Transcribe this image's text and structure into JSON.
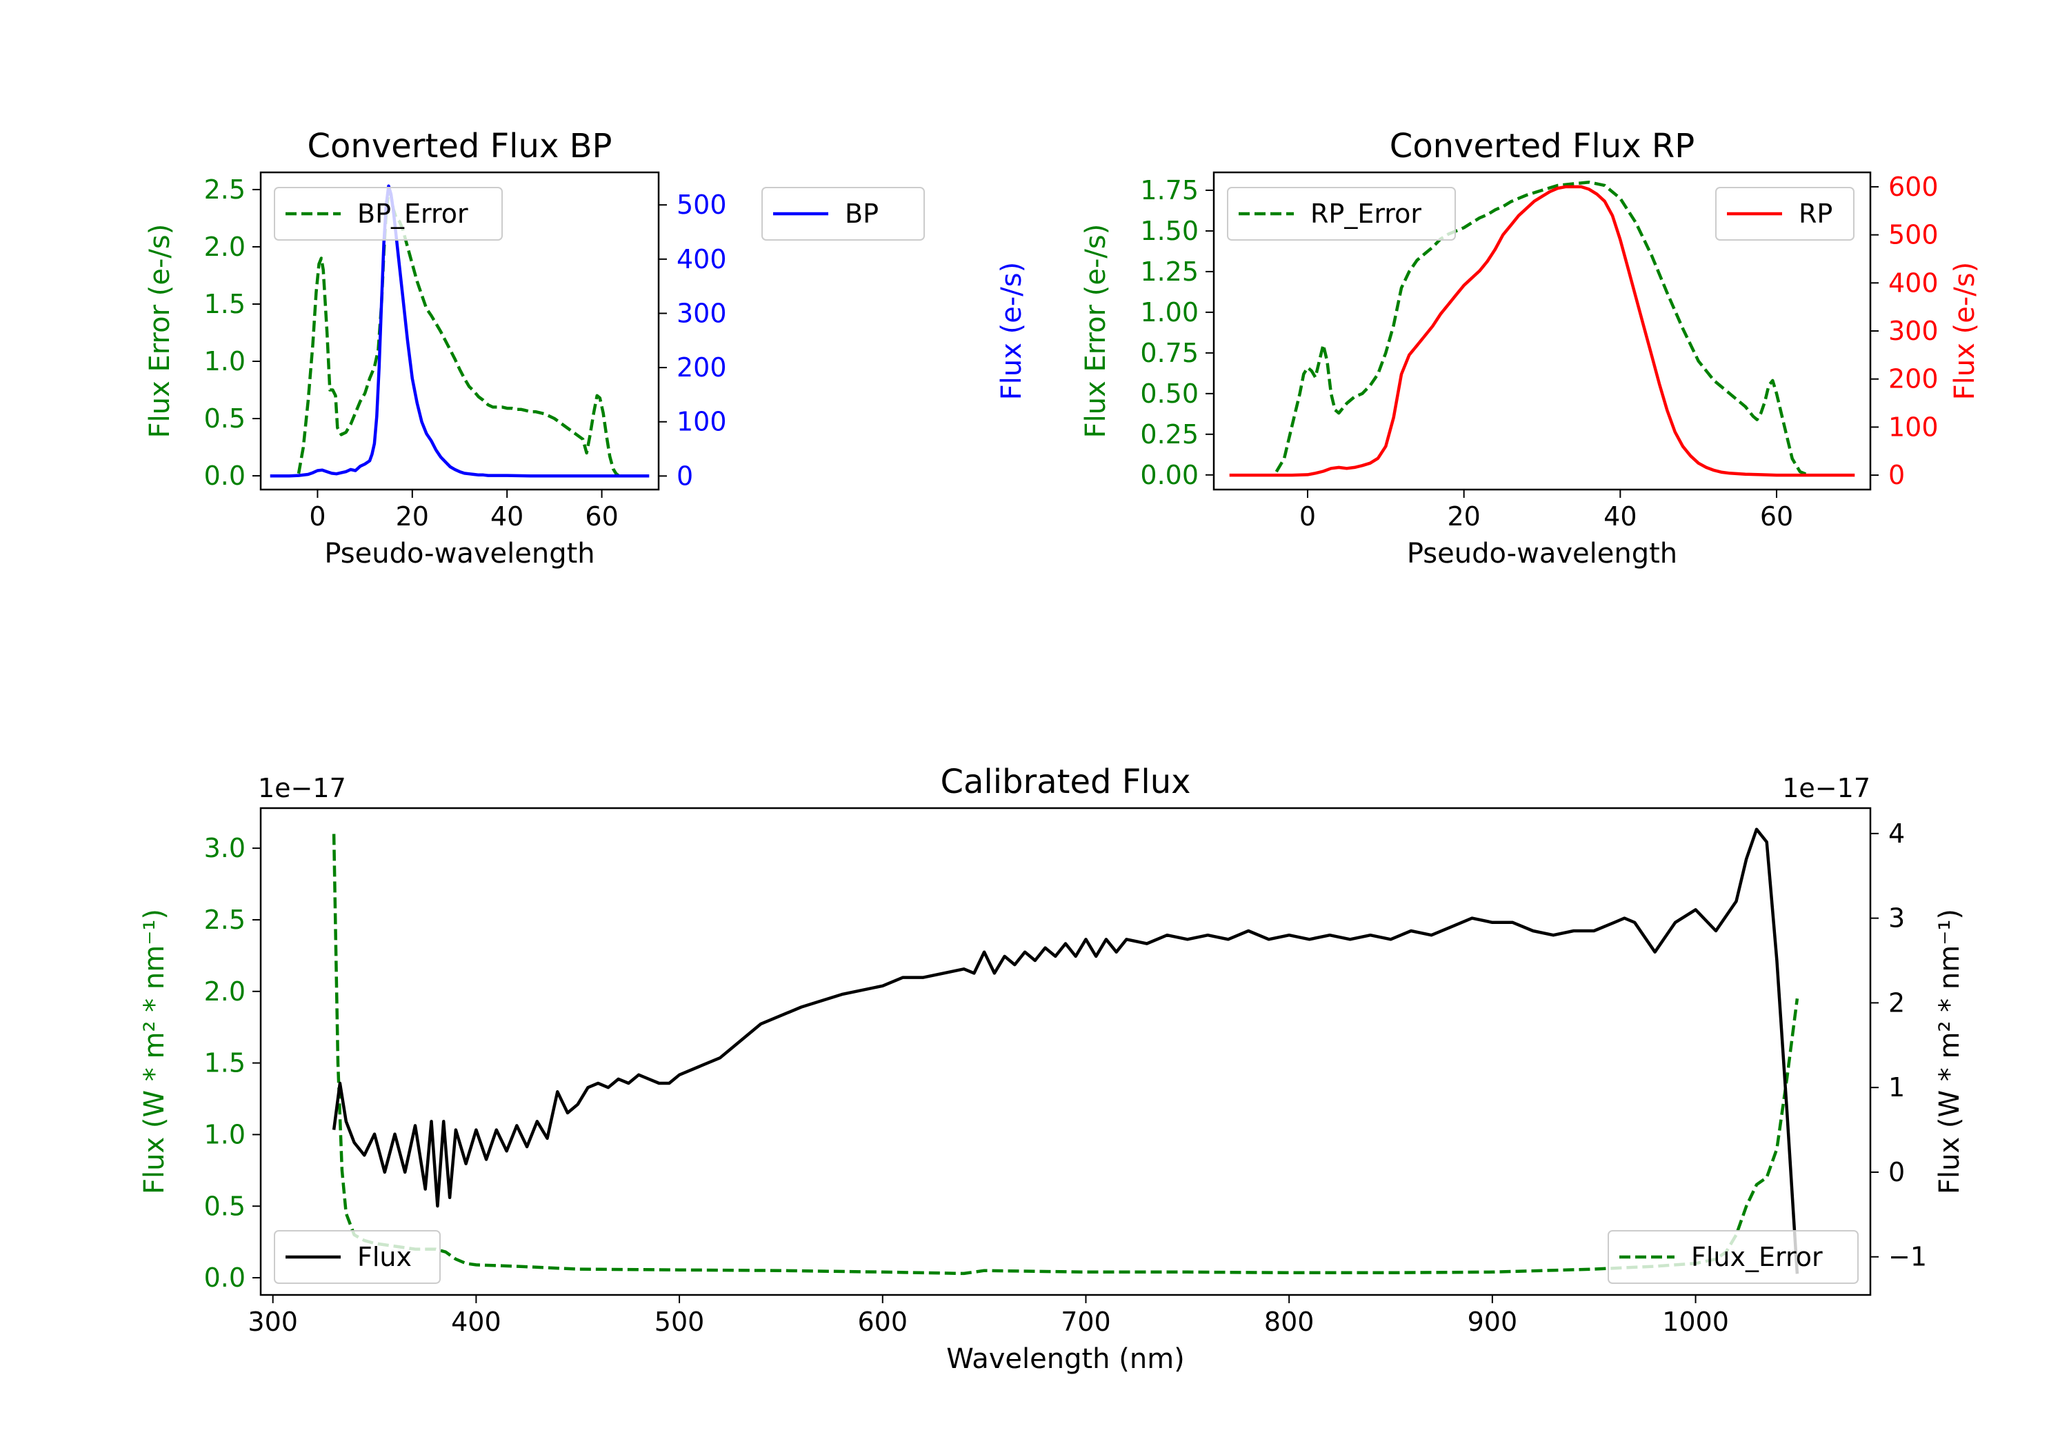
{
  "colors": {
    "green": "#008000",
    "blue": "#0000ff",
    "red": "#ff0000",
    "black": "#000000"
  },
  "chart_data": [
    {
      "id": "bp",
      "type": "line",
      "title": "Converted Flux BP",
      "xlabel": "Pseudo-wavelength",
      "ylabel_left": "Flux Error (e-/s)",
      "ylabel_right": "Flux (e-/s)",
      "xlim": [
        -12,
        72
      ],
      "ylim_left": [
        -0.12,
        2.65
      ],
      "ylim_right": [
        -25,
        560
      ],
      "xticks": [
        0,
        20,
        40,
        60
      ],
      "xtick_labels": [
        "0",
        "20",
        "40",
        "60"
      ],
      "yticks_left": [
        0.0,
        0.5,
        1.0,
        1.5,
        2.0,
        2.5
      ],
      "ytick_labels_left": [
        "0.0",
        "0.5",
        "1.0",
        "1.5",
        "2.0",
        "2.5"
      ],
      "yticks_right": [
        0,
        100,
        200,
        300,
        400,
        500
      ],
      "ytick_labels_right": [
        "0",
        "100",
        "200",
        "300",
        "400",
        "500"
      ],
      "left_color": "#008000",
      "right_color": "#0000ff",
      "legend_left": "BP_Error",
      "legend_right": "BP",
      "series": [
        {
          "name": "BP_Error",
          "axis": "left",
          "style": "dashed",
          "color": "#008000",
          "x": [
            -4,
            -3,
            -2,
            -1,
            -0.3,
            0.3,
            0.8,
            1.2,
            2,
            2.6,
            3.2,
            3.8,
            4.2,
            5,
            6,
            7,
            8,
            9,
            10,
            11,
            12,
            12.8,
            13.5,
            14,
            14.5,
            15,
            15.5,
            16,
            16.6,
            17.3,
            18,
            19,
            20,
            21,
            22,
            23,
            24,
            25,
            26,
            27,
            28,
            29,
            30,
            31,
            32,
            33,
            34,
            35,
            36,
            37,
            38,
            39,
            40,
            41,
            42,
            43,
            44,
            45,
            46,
            47,
            48,
            49,
            50,
            51,
            52,
            53,
            54,
            55,
            56,
            56.8,
            57.5,
            58.3,
            59,
            59.6,
            60.3,
            61,
            61.7,
            62.4,
            63,
            63.6
          ],
          "y": [
            0.02,
            0.25,
            0.65,
            1.15,
            1.6,
            1.85,
            1.9,
            1.8,
            1.25,
            0.75,
            0.75,
            0.7,
            0.42,
            0.36,
            0.38,
            0.45,
            0.55,
            0.65,
            0.72,
            0.85,
            0.95,
            1.1,
            1.5,
            1.95,
            2.3,
            2.48,
            2.45,
            2.33,
            2.25,
            2.22,
            2.15,
            2.0,
            1.85,
            1.7,
            1.58,
            1.46,
            1.4,
            1.33,
            1.26,
            1.18,
            1.1,
            1.02,
            0.93,
            0.85,
            0.78,
            0.74,
            0.69,
            0.66,
            0.62,
            0.6,
            0.6,
            0.6,
            0.59,
            0.59,
            0.58,
            0.58,
            0.57,
            0.56,
            0.56,
            0.55,
            0.54,
            0.52,
            0.5,
            0.47,
            0.44,
            0.41,
            0.38,
            0.35,
            0.32,
            0.2,
            0.35,
            0.55,
            0.7,
            0.68,
            0.55,
            0.35,
            0.17,
            0.06,
            0.02,
            0.0
          ]
        },
        {
          "name": "BP",
          "axis": "right",
          "style": "solid",
          "color": "#0000ff",
          "x": [
            -10,
            -8,
            -6,
            -4,
            -2,
            -1,
            0,
            1,
            2,
            3,
            4,
            5,
            6,
            7,
            8,
            9,
            10,
            11,
            11.5,
            12,
            12.5,
            13,
            13.5,
            14,
            14.5,
            15,
            15.5,
            16,
            16.5,
            17,
            18,
            19,
            20,
            21,
            22,
            23,
            24,
            25,
            26,
            27,
            28,
            29,
            30,
            31,
            32,
            33,
            34,
            35,
            36,
            38,
            40,
            45,
            50,
            55,
            60,
            65,
            70
          ],
          "y": [
            0,
            0,
            0,
            1,
            3,
            6,
            10,
            11,
            8,
            5,
            4,
            6,
            8,
            12,
            10,
            18,
            22,
            28,
            40,
            60,
            110,
            200,
            320,
            430,
            500,
            535,
            520,
            490,
            450,
            410,
            330,
            250,
            180,
            135,
            100,
            78,
            65,
            48,
            35,
            26,
            17,
            12,
            8,
            5,
            4,
            3,
            2,
            2,
            1,
            1,
            1,
            0,
            0,
            0,
            0,
            0,
            0
          ]
        }
      ]
    },
    {
      "id": "rp",
      "type": "line",
      "title": "Converted Flux RP",
      "xlabel": "Pseudo-wavelength",
      "ylabel_left": "Flux Error (e-/s)",
      "ylabel_right": "Flux (e-/s)",
      "xlim": [
        -12,
        72
      ],
      "ylim_left": [
        -0.09,
        1.86
      ],
      "ylim_right": [
        -30,
        630
      ],
      "xticks": [
        0,
        20,
        40,
        60
      ],
      "xtick_labels": [
        "0",
        "20",
        "40",
        "60"
      ],
      "yticks_left": [
        0.0,
        0.25,
        0.5,
        0.75,
        1.0,
        1.25,
        1.5,
        1.75
      ],
      "ytick_labels_left": [
        "0.00",
        "0.25",
        "0.50",
        "0.75",
        "1.00",
        "1.25",
        "1.50",
        "1.75"
      ],
      "yticks_right": [
        0,
        100,
        200,
        300,
        400,
        500,
        600
      ],
      "ytick_labels_right": [
        "0",
        "100",
        "200",
        "300",
        "400",
        "500",
        "600"
      ],
      "left_color": "#008000",
      "right_color": "#ff0000",
      "legend_left": "RP_Error",
      "legend_right": "RP",
      "series": [
        {
          "name": "RP_Error",
          "axis": "left",
          "style": "dashed",
          "color": "#008000",
          "x": [
            -4,
            -3,
            -2,
            -1,
            -0.5,
            0,
            0.5,
            1,
            1.5,
            2,
            2.5,
            3,
            3.5,
            4,
            5,
            6,
            7,
            8,
            9,
            10,
            11,
            12,
            13,
            14,
            15,
            16,
            17,
            18,
            19,
            20,
            21,
            22,
            23,
            24,
            25,
            26,
            27,
            28,
            30,
            32,
            34,
            36,
            38,
            40,
            42,
            44,
            46,
            48,
            50,
            52,
            54,
            56,
            57,
            57.5,
            58,
            58.5,
            59,
            59.5,
            60,
            61,
            62,
            63,
            64
          ],
          "y": [
            0.02,
            0.1,
            0.3,
            0.5,
            0.62,
            0.66,
            0.64,
            0.6,
            0.7,
            0.8,
            0.7,
            0.5,
            0.4,
            0.38,
            0.44,
            0.48,
            0.5,
            0.55,
            0.62,
            0.75,
            0.92,
            1.15,
            1.25,
            1.32,
            1.36,
            1.4,
            1.45,
            1.48,
            1.5,
            1.52,
            1.55,
            1.58,
            1.6,
            1.63,
            1.65,
            1.68,
            1.7,
            1.72,
            1.75,
            1.78,
            1.79,
            1.8,
            1.78,
            1.7,
            1.55,
            1.35,
            1.12,
            0.9,
            0.7,
            0.58,
            0.5,
            0.42,
            0.36,
            0.34,
            0.38,
            0.45,
            0.55,
            0.58,
            0.5,
            0.3,
            0.1,
            0.02,
            0.0
          ]
        },
        {
          "name": "RP",
          "axis": "right",
          "style": "solid",
          "color": "#ff0000",
          "x": [
            -10,
            -6,
            -2,
            0,
            1,
            2,
            3,
            4,
            5,
            6,
            7,
            8,
            9,
            10,
            11,
            12,
            13,
            14,
            15,
            16,
            17,
            18,
            19,
            20,
            21,
            22,
            23,
            24,
            25,
            26,
            27,
            28,
            29,
            30,
            31,
            32,
            33,
            34,
            35,
            36,
            37,
            38,
            39,
            40,
            41,
            42,
            43,
            44,
            45,
            46,
            47,
            48,
            49,
            50,
            51,
            52,
            53,
            54,
            56,
            58,
            60,
            63,
            66,
            70
          ],
          "y": [
            0,
            0,
            0,
            1,
            4,
            8,
            14,
            16,
            14,
            16,
            20,
            25,
            35,
            60,
            120,
            210,
            250,
            270,
            290,
            310,
            335,
            355,
            375,
            395,
            410,
            425,
            445,
            470,
            500,
            520,
            540,
            555,
            570,
            580,
            590,
            597,
            600,
            600,
            600,
            595,
            585,
            570,
            540,
            490,
            430,
            370,
            310,
            250,
            190,
            135,
            90,
            60,
            40,
            25,
            16,
            10,
            6,
            4,
            2,
            1,
            0,
            0,
            0,
            0
          ]
        }
      ]
    },
    {
      "id": "cal",
      "type": "line",
      "title": "Calibrated Flux",
      "xlabel": "Wavelength (nm)",
      "ylabel_left": "Flux (W * m² * nm⁻¹)",
      "ylabel_right": "Flux (W * m² * nm⁻¹)",
      "offset_left": "1e−17",
      "offset_right": "1e−17",
      "xlim": [
        294,
        1086
      ],
      "ylim_left": [
        -0.12,
        3.28
      ],
      "ylim_right": [
        -1.45,
        4.3
      ],
      "xticks": [
        300,
        400,
        500,
        600,
        700,
        800,
        900,
        1000
      ],
      "xtick_labels": [
        "300",
        "400",
        "500",
        "600",
        "700",
        "800",
        "900",
        "1000"
      ],
      "yticks_left": [
        0.0,
        0.5,
        1.0,
        1.5,
        2.0,
        2.5,
        3.0
      ],
      "ytick_labels_left": [
        "0.0",
        "0.5",
        "1.0",
        "1.5",
        "2.0",
        "2.5",
        "3.0"
      ],
      "yticks_right": [
        -1,
        0,
        1,
        2,
        3,
        4
      ],
      "ytick_labels_right": [
        "−1",
        "0",
        "1",
        "2",
        "3",
        "4"
      ],
      "left_color": "#008000",
      "right_color": "#000000",
      "legend_left": "Flux",
      "legend_right": "Flux_Error",
      "series": [
        {
          "name": "Flux_Error",
          "axis": "left",
          "style": "dashed",
          "color": "#008000",
          "x": [
            330,
            331,
            332,
            334,
            336,
            340,
            345,
            350,
            360,
            370,
            380,
            385,
            390,
            395,
            400,
            420,
            450,
            500,
            550,
            600,
            640,
            650,
            700,
            750,
            800,
            850,
            900,
            950,
            980,
            1000,
            1010,
            1015,
            1020,
            1025,
            1030,
            1035,
            1040,
            1045,
            1050
          ],
          "y": [
            3.1,
            2.3,
            1.5,
            0.75,
            0.45,
            0.3,
            0.26,
            0.24,
            0.22,
            0.2,
            0.2,
            0.18,
            0.13,
            0.1,
            0.09,
            0.08,
            0.06,
            0.055,
            0.05,
            0.04,
            0.03,
            0.05,
            0.04,
            0.04,
            0.035,
            0.035,
            0.04,
            0.06,
            0.08,
            0.1,
            0.13,
            0.18,
            0.3,
            0.5,
            0.65,
            0.7,
            0.9,
            1.4,
            1.95
          ]
        },
        {
          "name": "Flux",
          "axis": "right",
          "style": "solid",
          "color": "#000000",
          "x": [
            330,
            333,
            336,
            340,
            345,
            350,
            355,
            360,
            365,
            370,
            375,
            378,
            381,
            384,
            387,
            390,
            395,
            400,
            405,
            410,
            415,
            420,
            425,
            430,
            435,
            440,
            445,
            450,
            455,
            460,
            465,
            470,
            475,
            480,
            485,
            490,
            495,
            500,
            510,
            520,
            540,
            560,
            580,
            600,
            610,
            620,
            630,
            640,
            645,
            650,
            655,
            660,
            665,
            670,
            675,
            680,
            685,
            690,
            695,
            700,
            705,
            710,
            715,
            720,
            730,
            740,
            750,
            760,
            770,
            780,
            790,
            800,
            810,
            820,
            830,
            840,
            850,
            860,
            870,
            880,
            890,
            900,
            910,
            920,
            930,
            940,
            950,
            960,
            965,
            970,
            980,
            990,
            1000,
            1010,
            1020,
            1025,
            1030,
            1035,
            1040,
            1045,
            1050
          ],
          "y": [
            0.5,
            1.05,
            0.6,
            0.35,
            0.2,
            0.45,
            0.0,
            0.45,
            0.0,
            0.55,
            -0.2,
            0.6,
            -0.4,
            0.6,
            -0.3,
            0.5,
            0.1,
            0.5,
            0.15,
            0.5,
            0.25,
            0.55,
            0.3,
            0.6,
            0.4,
            0.95,
            0.7,
            0.8,
            1.0,
            1.05,
            1.0,
            1.1,
            1.05,
            1.15,
            1.1,
            1.05,
            1.05,
            1.15,
            1.25,
            1.35,
            1.75,
            1.95,
            2.1,
            2.2,
            2.3,
            2.3,
            2.35,
            2.4,
            2.35,
            2.6,
            2.35,
            2.55,
            2.45,
            2.6,
            2.5,
            2.65,
            2.55,
            2.7,
            2.55,
            2.75,
            2.55,
            2.75,
            2.6,
            2.75,
            2.7,
            2.8,
            2.75,
            2.8,
            2.75,
            2.85,
            2.75,
            2.8,
            2.75,
            2.8,
            2.75,
            2.8,
            2.75,
            2.85,
            2.8,
            2.9,
            3.0,
            2.95,
            2.95,
            2.85,
            2.8,
            2.85,
            2.85,
            2.95,
            3.0,
            2.95,
            2.6,
            2.95,
            3.1,
            2.85,
            3.2,
            3.7,
            4.05,
            3.9,
            2.5,
            0.7,
            -1.2
          ]
        }
      ]
    }
  ]
}
